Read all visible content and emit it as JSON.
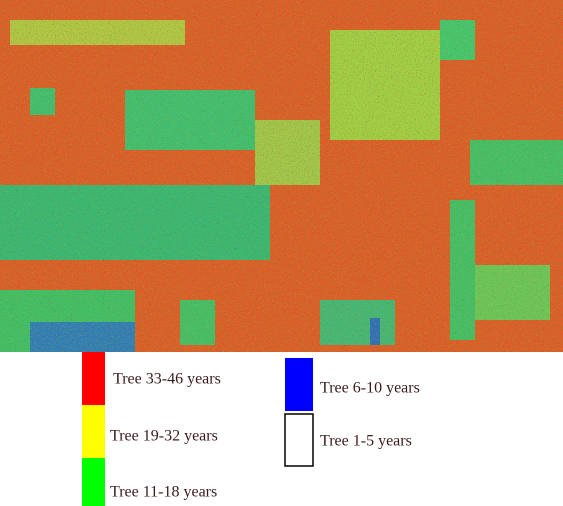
{
  "legend": {
    "items": [
      {
        "label": "Tree 33-46 years",
        "color": "#ff0000"
      },
      {
        "label": "Tree 19-32 years",
        "color": "#ffff00"
      },
      {
        "label": "Tree 11-18 years",
        "color": "#00ff00"
      },
      {
        "label": "Tree 6-10 years",
        "color": "#0000ff"
      },
      {
        "label": "Tree 1-5 years",
        "color": "#ffffff"
      }
    ]
  }
}
